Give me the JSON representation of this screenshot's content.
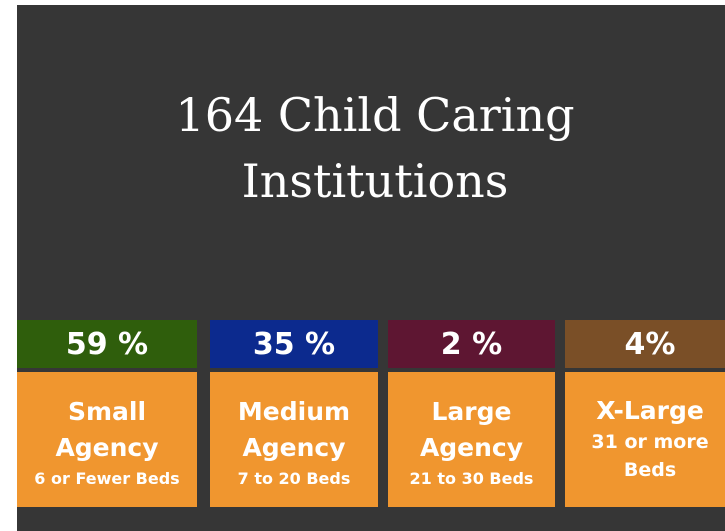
{
  "title": [
    "164 Child Caring",
    "Institutions"
  ],
  "cards": [
    {
      "percent": "59 %",
      "color": "#2f5e0c",
      "name": [
        "Small",
        "Agency"
      ],
      "detail": [
        "6 or Fewer Beds"
      ]
    },
    {
      "percent": "35 %",
      "color": "#0c2a8e",
      "name": [
        "Medium",
        "Agency"
      ],
      "detail": [
        "7 to 20 Beds"
      ]
    },
    {
      "percent": "2 %",
      "color": "#5e1632",
      "name": [
        "Large",
        "Agency"
      ],
      "detail": [
        "21 to 30 Beds"
      ]
    },
    {
      "percent": "4%",
      "color": "#7a4f27",
      "name": [
        "X-Large"
      ],
      "detail": [
        "31 or more",
        "Beds"
      ]
    }
  ]
}
